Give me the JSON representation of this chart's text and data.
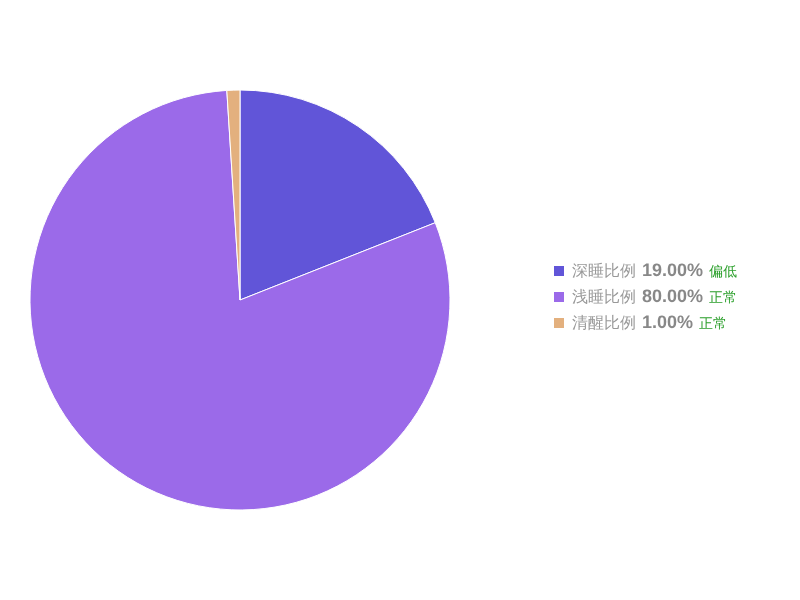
{
  "chart_data": {
    "type": "pie",
    "categories": [
      "深睡比例",
      "浅睡比例",
      "清醒比例"
    ],
    "values": [
      19,
      80,
      1
    ],
    "value_labels": [
      "19.00%",
      "80.00%",
      "1.00%"
    ],
    "colors": [
      "#6155d8",
      "#9b6ae9",
      "#e3b07e"
    ],
    "annotations": [
      "偏低",
      "正常",
      "正常"
    ],
    "legend": "right"
  }
}
